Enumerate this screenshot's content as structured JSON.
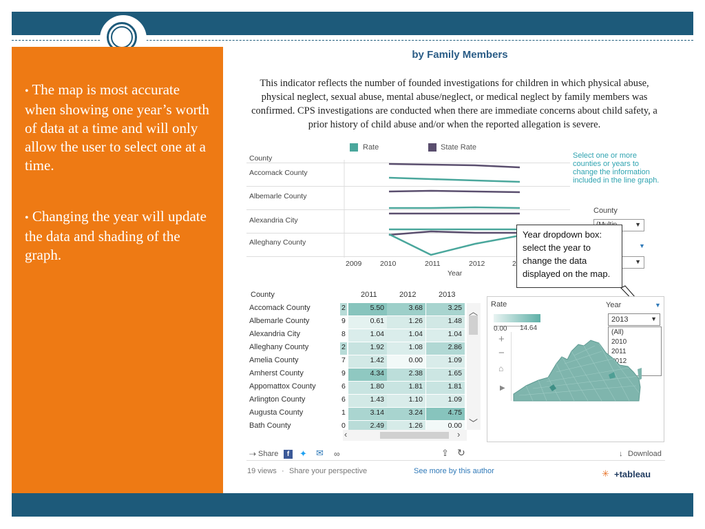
{
  "slide": {
    "bullets": [
      {
        "dot": "•",
        "text": "The map is most accurate when showing one year’s worth of data at a time and will only allow the user to select one at a time."
      },
      {
        "dot": "•",
        "text": "Changing the year will update the data and shading of the graph."
      }
    ],
    "colors": {
      "band": "#1d5a7a",
      "sidebar": "#ee7a14"
    }
  },
  "dashboard": {
    "title_line2": "by Family Members",
    "description": "This indicator reflects the number of founded investigations for children in which physical abuse, physical neglect, sexual abuse, mental abuse/neglect, or medical neglect  by family members was confirmed. CPS investigations are conducted when there are immediate concerns about child safety, a prior history of child abuse and/or when the reported allegation is severe.",
    "legend": [
      {
        "label": "Rate",
        "color": "#4aa79c"
      },
      {
        "label": "State Rate",
        "color": "#5a4e6e"
      }
    ],
    "line_chart": {
      "row_header": "County",
      "counties": [
        "Accomack County",
        "Albemarle County",
        "Alexandria City",
        "Alleghany County"
      ],
      "x_ticks": [
        "2009",
        "2010",
        "2011",
        "2012",
        "2"
      ],
      "x_label": "Year"
    },
    "filter_note": "Select one or more counties or years to change the information included in the line graph.",
    "county_filter_label": "County",
    "county_filter_value": "(Multip",
    "annotation": "Year dropdown box: select the year to change the data displayed on the map.",
    "table": {
      "header": "County",
      "years": [
        "2011",
        "2012",
        "2013"
      ],
      "rows": [
        {
          "county": "Accomack County",
          "edge": "2",
          "v": [
            "5.50",
            "3.68",
            "3.25"
          ]
        },
        {
          "county": "Albemarle County",
          "edge": "9",
          "v": [
            "0.61",
            "1.26",
            "1.48"
          ]
        },
        {
          "county": "Alexandria City",
          "edge": "8",
          "v": [
            "1.04",
            "1.04",
            "1.04"
          ]
        },
        {
          "county": "Alleghany County",
          "edge": "2",
          "v": [
            "1.92",
            "1.08",
            "2.86"
          ]
        },
        {
          "county": "Amelia County",
          "edge": "7",
          "v": [
            "1.42",
            "0.00",
            "1.09"
          ]
        },
        {
          "county": "Amherst County",
          "edge": "9",
          "v": [
            "4.34",
            "2.38",
            "1.65"
          ]
        },
        {
          "county": "Appomattox County",
          "edge": "6",
          "v": [
            "1.80",
            "1.81",
            "1.81"
          ]
        },
        {
          "county": "Arlington County",
          "edge": "6",
          "v": [
            "1.43",
            "1.10",
            "1.09"
          ]
        },
        {
          "county": "Augusta County",
          "edge": "1",
          "v": [
            "3.14",
            "3.24",
            "4.75"
          ]
        },
        {
          "county": "Bath County",
          "edge": "0",
          "v": [
            "2.49",
            "1.26",
            "0.00"
          ]
        }
      ]
    },
    "map": {
      "rate_label": "Rate",
      "rate_min": "0.00",
      "rate_max": "14.64",
      "year_label": "Year",
      "year_selected": "2013",
      "year_options": [
        "(All)",
        "2010",
        "2011",
        "2012",
        "2013"
      ]
    },
    "toolbar": {
      "share": "Share",
      "download": "Download",
      "views": "19 views",
      "sep": "·",
      "perspective": "Share your perspective",
      "author_link": "See more by this author",
      "brand": "+tableau"
    }
  }
}
